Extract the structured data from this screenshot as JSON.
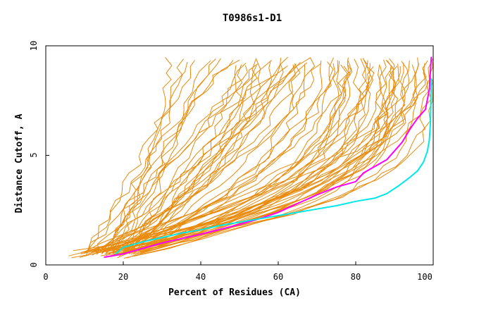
{
  "chart_data": {
    "type": "line",
    "title": "T0986s1-D1",
    "xlabel": "Percent of Residues (CA)",
    "ylabel": "Distance Cutoff, A",
    "xlim": [
      0,
      100
    ],
    "ylim": [
      0,
      10
    ],
    "x_ticks": [
      "0",
      "20",
      "40",
      "60",
      "80",
      "100"
    ],
    "y_ticks": [
      "0",
      "5",
      "10"
    ],
    "colors": {
      "models": "#e88a0c",
      "highlight_1": "#ff00ff",
      "highlight_2": "#00e8e8"
    },
    "series": [
      {
        "name": "highlight-magenta",
        "color": "#ff00ff",
        "x": [
          15,
          20,
          25,
          30,
          35,
          40,
          45,
          50,
          55,
          60,
          65,
          70,
          75,
          80,
          82,
          85,
          88,
          90,
          92,
          94,
          96,
          98,
          99,
          99.5
        ],
        "y": [
          0.35,
          0.5,
          0.75,
          1.0,
          1.2,
          1.4,
          1.62,
          1.85,
          2.1,
          2.4,
          2.8,
          3.2,
          3.55,
          3.8,
          4.2,
          4.5,
          4.8,
          5.2,
          5.6,
          6.2,
          6.7,
          7.1,
          8.0,
          9.5
        ]
      },
      {
        "name": "highlight-cyan",
        "color": "#00e8e8",
        "x": [
          18,
          20,
          25,
          30,
          35,
          40,
          45,
          50,
          55,
          60,
          65,
          70,
          75,
          80,
          85,
          88,
          91,
          94,
          96,
          97.5,
          98.5,
          99,
          99.3,
          99.5
        ],
        "y": [
          0.5,
          0.8,
          1.05,
          1.25,
          1.45,
          1.6,
          1.8,
          1.95,
          2.1,
          2.25,
          2.4,
          2.55,
          2.7,
          2.9,
          3.05,
          3.25,
          3.6,
          4.0,
          4.3,
          4.7,
          5.2,
          5.7,
          6.5,
          8.5
        ]
      }
    ],
    "bundle_note": "Approx. 70 orange model curves spanning x from ~6% to ~100%, each rising from ~0.3 A to 9.5 A"
  }
}
